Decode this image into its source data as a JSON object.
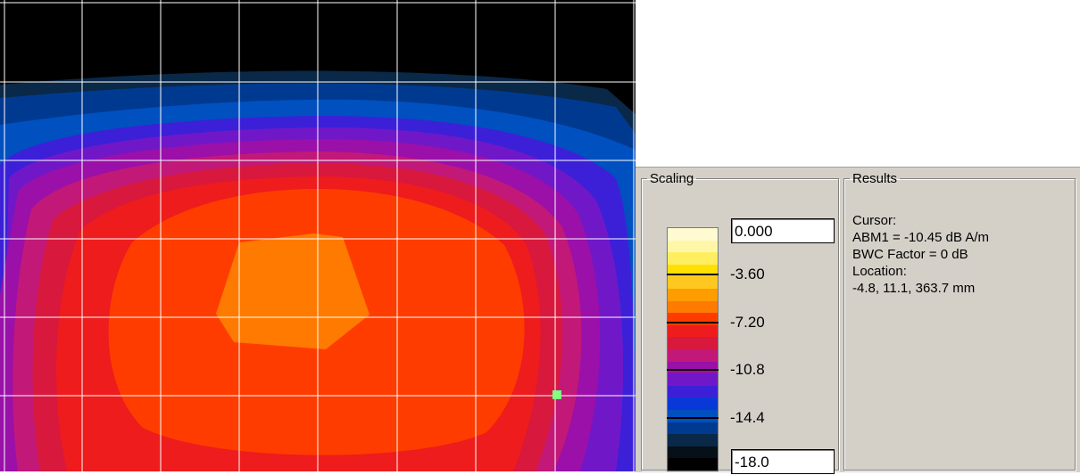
{
  "scaling": {
    "title": "Scaling",
    "max_value": "0.000",
    "min_value": "-18.0",
    "ticks": [
      "-3.60",
      "-7.20",
      "-10.8",
      "-14.4"
    ],
    "colors": [
      "#fffad0",
      "#fff7a8",
      "#ffef60",
      "#ffe000",
      "#ffc820",
      "#ff9c00",
      "#ff7a00",
      "#ff3c00",
      "#ee1c1c",
      "#d8183c",
      "#c21878",
      "#9a10a8",
      "#7018c8",
      "#3c20d8",
      "#0838d8",
      "#0050c0",
      "#003a90",
      "#0a2848",
      "#061018",
      "#000000"
    ]
  },
  "results": {
    "title": "Results",
    "lines": [
      "Cursor:",
      "ABM1 = -10.45 dB A/m",
      "BWC Factor = 0 dB",
      "Location:",
      "-4.8, 11.1, 363.7 mm"
    ]
  },
  "map": {
    "grid_color": "#ffffff",
    "cursor_color": "#80ff80",
    "region_colors": [
      "#000000",
      "#0a2848",
      "#003a90",
      "#0050c0",
      "#3c20d8",
      "#7018c8",
      "#9a10a8",
      "#c21878",
      "#d8183c",
      "#ee1c1c",
      "#ff3c00",
      "#ff7a00"
    ]
  }
}
